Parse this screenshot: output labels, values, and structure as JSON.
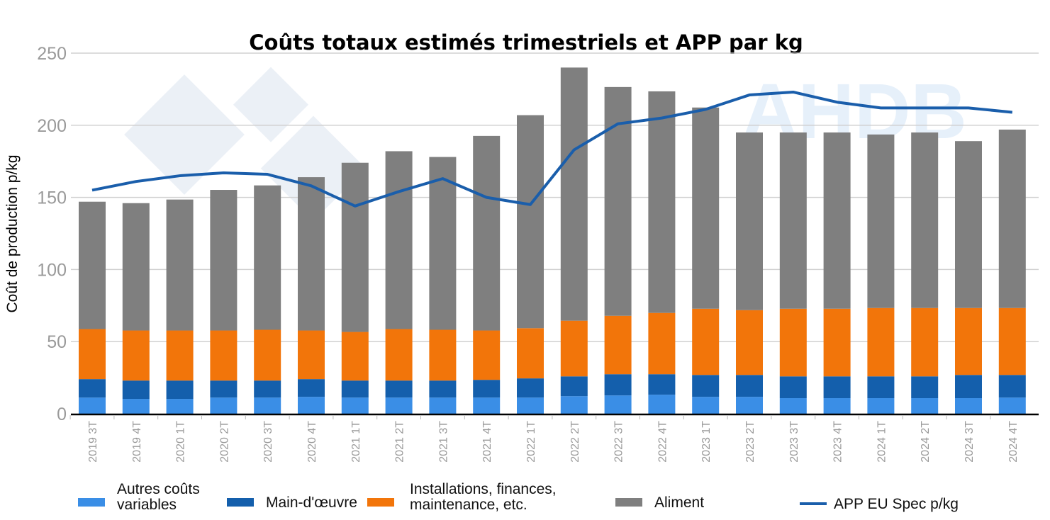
{
  "chart_data": {
    "type": "bar",
    "stacked": true,
    "title": "Coûts totaux estimés trimestriels et APP par kg",
    "ylabel": "Coût de production p/kg",
    "xlabel": "",
    "ylim": [
      0,
      250
    ],
    "yticks": [
      0,
      50,
      100,
      150,
      200,
      250
    ],
    "grid": true,
    "legend_position": "bottom",
    "watermark": "AHDB",
    "categories": [
      "2019 3T",
      "2019 4T",
      "2020 1T",
      "2020 2T",
      "2020 3T",
      "2020 4T",
      "2021 1T",
      "2021 2T",
      "2021 3T",
      "2021 4T",
      "2022 1T",
      "2022 2T",
      "2022 3T",
      "2022 4T",
      "2023 1T",
      "2023 2T",
      "2023 3T",
      "2023 4T",
      "2024 1T",
      "2024 2T",
      "2024 3T",
      "2024 4T"
    ],
    "series": [
      {
        "name": "Autres coûts variables",
        "color": "#3a8ee6",
        "values": [
          11.2,
          10.3,
          10.3,
          11.2,
          11.2,
          11.7,
          11.2,
          11.2,
          11.2,
          11.2,
          11.2,
          12.2,
          12.7,
          13.2,
          11.7,
          11.7,
          10.8,
          10.8,
          10.8,
          10.8,
          10.8,
          11.2
        ]
      },
      {
        "name": "Main-d'œuvre",
        "color": "#145fac",
        "values": [
          12.8,
          12.7,
          12.7,
          11.8,
          11.8,
          12.3,
          11.8,
          11.8,
          11.8,
          12.3,
          13.3,
          13.7,
          14.7,
          14.2,
          15.2,
          15.2,
          15.1,
          15.1,
          15.1,
          15.1,
          16.1,
          15.7
        ]
      },
      {
        "name": "Installations, finances, maintenance, etc.",
        "color": "#f2750a",
        "values": [
          34.7,
          34.7,
          34.7,
          34.7,
          35.2,
          33.7,
          33.7,
          35.7,
          35.2,
          34.2,
          34.8,
          38.6,
          40.5,
          42.5,
          45.9,
          44.9,
          46.9,
          46.9,
          47.4,
          47.4,
          46.4,
          46.4
        ]
      },
      {
        "name": "Aliment",
        "color": "#7f7f7f",
        "values": [
          88.3,
          88.3,
          90.8,
          97.5,
          100.1,
          106.3,
          117.3,
          123.3,
          119.8,
          134.9,
          147.7,
          175.5,
          158.6,
          153.6,
          139.5,
          123.2,
          122.2,
          122.2,
          120.3,
          121.7,
          115.7,
          123.7
        ]
      }
    ],
    "line_series": {
      "name": "APP EU Spec p/kg",
      "color": "#1a5eab",
      "values": [
        155,
        161,
        165,
        167,
        166,
        158,
        144,
        154,
        163,
        150,
        145,
        183,
        201,
        205,
        211,
        221,
        223,
        216,
        212,
        212,
        212,
        209
      ]
    }
  }
}
